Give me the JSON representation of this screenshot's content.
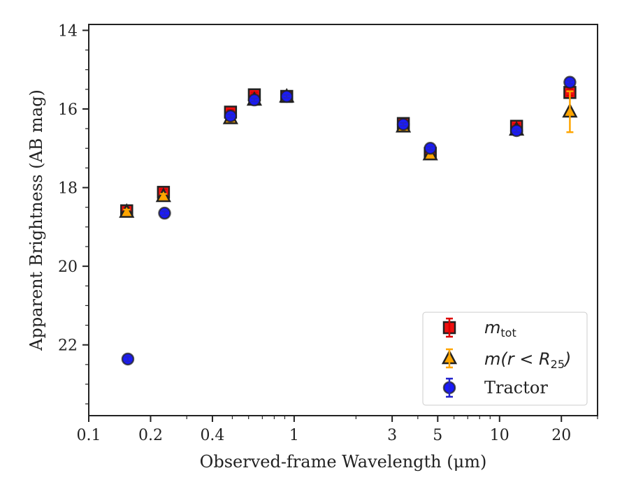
{
  "chart_data": {
    "type": "scatter",
    "title": "",
    "xlabel": "Observed-frame Wavelength (μm)",
    "ylabel": "Apparent Brightness (AB mag)",
    "xscale": "log",
    "xlim": [
      0.1,
      30
    ],
    "ylim": [
      23.8,
      13.85
    ],
    "y_inverted": true,
    "x_ticks": [
      {
        "value": 0.1,
        "label": "0.1"
      },
      {
        "value": 0.2,
        "label": "0.2"
      },
      {
        "value": 0.4,
        "label": "0.4"
      },
      {
        "value": 1,
        "label": "1"
      },
      {
        "value": 3,
        "label": "3"
      },
      {
        "value": 5,
        "label": "5"
      },
      {
        "value": 10,
        "label": "10"
      },
      {
        "value": 20,
        "label": "20"
      }
    ],
    "y_ticks": [
      {
        "value": 14,
        "label": "14"
      },
      {
        "value": 16,
        "label": "16"
      },
      {
        "value": 18,
        "label": "18"
      },
      {
        "value": 20,
        "label": "20"
      },
      {
        "value": 22,
        "label": "22"
      }
    ],
    "grid": false,
    "legend_position": "bottom-right",
    "series": [
      {
        "name": "m_tot",
        "marker": "square",
        "color": "#ee1111",
        "error_color": "#dd0000",
        "points": [
          {
            "x": 0.153,
            "y": 18.59,
            "err": 0.08
          },
          {
            "x": 0.231,
            "y": 18.12,
            "err": 0.08
          },
          {
            "x": 0.49,
            "y": 16.08,
            "err": 0.06
          },
          {
            "x": 0.64,
            "y": 15.64,
            "err": 0.06
          },
          {
            "x": 0.92,
            "y": 15.68,
            "err": 0.05
          },
          {
            "x": 3.4,
            "y": 16.37,
            "err": 0.05
          },
          {
            "x": 4.6,
            "y": 17.13,
            "err": 0.05
          },
          {
            "x": 12.1,
            "y": 16.44,
            "err": 0.06
          },
          {
            "x": 22.0,
            "y": 15.58,
            "err": 0.08
          }
        ]
      },
      {
        "name": "m(r < R25)",
        "marker": "triangle",
        "color": "#ffa500",
        "error_color": "#ffa500",
        "points": [
          {
            "x": 0.153,
            "y": 18.62,
            "err": 0.06
          },
          {
            "x": 0.231,
            "y": 18.22,
            "err": 0.06
          },
          {
            "x": 0.49,
            "y": 16.24,
            "err": 0.05
          },
          {
            "x": 0.64,
            "y": 15.77,
            "err": 0.05
          },
          {
            "x": 0.92,
            "y": 15.69,
            "err": 0.05
          },
          {
            "x": 3.4,
            "y": 16.45,
            "err": 0.05
          },
          {
            "x": 4.6,
            "y": 17.16,
            "err": 0.05
          },
          {
            "x": 12.1,
            "y": 16.53,
            "err": 0.05
          },
          {
            "x": 22.0,
            "y": 16.07,
            "err": 0.52
          }
        ]
      },
      {
        "name": "Tractor",
        "marker": "circle",
        "color": "#1a1aff",
        "error_color": "#2222cc",
        "points": [
          {
            "x": 0.155,
            "y": 22.36,
            "err": 0.06
          },
          {
            "x": 0.234,
            "y": 18.65,
            "err": 0.05
          },
          {
            "x": 0.49,
            "y": 16.18,
            "err": 0.04
          },
          {
            "x": 0.64,
            "y": 15.77,
            "err": 0.04
          },
          {
            "x": 0.92,
            "y": 15.68,
            "err": 0.04
          },
          {
            "x": 3.4,
            "y": 16.39,
            "err": 0.04
          },
          {
            "x": 4.6,
            "y": 17.0,
            "err": 0.04
          },
          {
            "x": 12.1,
            "y": 16.55,
            "err": 0.04
          },
          {
            "x": 22.0,
            "y": 15.32,
            "err": 0.04
          }
        ]
      }
    ]
  },
  "legend": {
    "items": [
      {
        "main": "m",
        "sub": "tot",
        "suffix": ""
      },
      {
        "main": "m(r < R",
        "sub": "25",
        "suffix": ")"
      },
      {
        "main": "Tractor",
        "sub": "",
        "suffix": ""
      }
    ]
  }
}
